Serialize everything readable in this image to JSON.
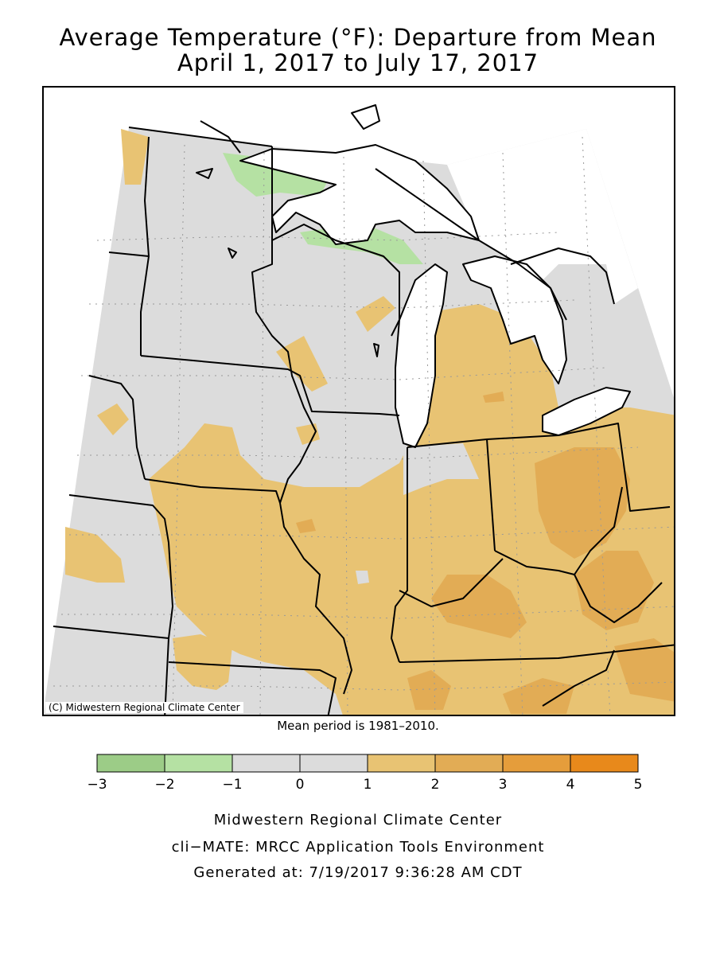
{
  "title": {
    "line1": "Average Temperature (°F): Departure from Mean",
    "line2": "April 1, 2017 to July 17, 2017"
  },
  "map": {
    "copyright": "(C) Midwestern Regional Climate Center",
    "mean_period": "Mean period is 1981–2010.",
    "colors": {
      "water": "#ffffff",
      "neutral_fill": "#dcdcdc",
      "green_light": "#b5e1a3",
      "orange_1_2": "#e8c373",
      "orange_2_3": "#e2ac55",
      "boundary": "#000000",
      "graticule": "#999999"
    }
  },
  "legend": {
    "bins": [
      {
        "from": -3,
        "to": -2,
        "color": "#9ccc87"
      },
      {
        "from": -2,
        "to": -1,
        "color": "#b5e1a3"
      },
      {
        "from": -1,
        "to": 0,
        "color": "#dcdcdc"
      },
      {
        "from": 0,
        "to": 1,
        "color": "#dcdcdc"
      },
      {
        "from": 1,
        "to": 2,
        "color": "#e8c373"
      },
      {
        "from": 2,
        "to": 3,
        "color": "#e2ac55"
      },
      {
        "from": 3,
        "to": 4,
        "color": "#e59d3b"
      },
      {
        "from": 4,
        "to": 5,
        "color": "#e8891b"
      }
    ],
    "tick_labels": [
      "−3",
      "−2",
      "−1",
      "0",
      "1",
      "2",
      "3",
      "4",
      "5"
    ]
  },
  "footer": {
    "org": "Midwestern Regional Climate Center",
    "tool": "cli−MATE: MRCC Application Tools Environment",
    "generated": "Generated at: 7/19/2017 9:36:28 AM CDT"
  }
}
